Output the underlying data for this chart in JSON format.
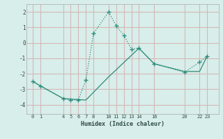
{
  "line1_x": [
    0,
    1,
    4,
    5,
    6,
    7,
    8,
    10,
    11,
    12,
    13,
    14,
    16,
    20,
    22,
    23
  ],
  "line1_y": [
    -2.5,
    -2.8,
    -3.6,
    -3.7,
    -3.7,
    -2.4,
    0.6,
    2.0,
    1.1,
    0.5,
    -0.4,
    -0.35,
    -1.35,
    -1.9,
    -1.25,
    -0.85
  ],
  "line2_x": [
    0,
    4,
    7,
    10,
    14,
    16,
    20,
    22,
    23
  ],
  "line2_y": [
    -2.5,
    -3.6,
    -3.7,
    -2.2,
    -0.35,
    -1.35,
    -1.85,
    -1.85,
    -0.85
  ],
  "line_color": "#2e8b7a",
  "bg_color": "#d8eeea",
  "grid_color": "#d4b8b8",
  "xlabel": "Humidex (Indice chaleur)",
  "xticks": [
    0,
    1,
    4,
    5,
    6,
    7,
    8,
    10,
    11,
    12,
    13,
    14,
    16,
    20,
    22,
    23
  ],
  "yticks": [
    -4,
    -3,
    -2,
    -1,
    0,
    1,
    2
  ],
  "ylim": [
    -4.6,
    2.5
  ],
  "xlim": [
    -0.8,
    24.5
  ]
}
